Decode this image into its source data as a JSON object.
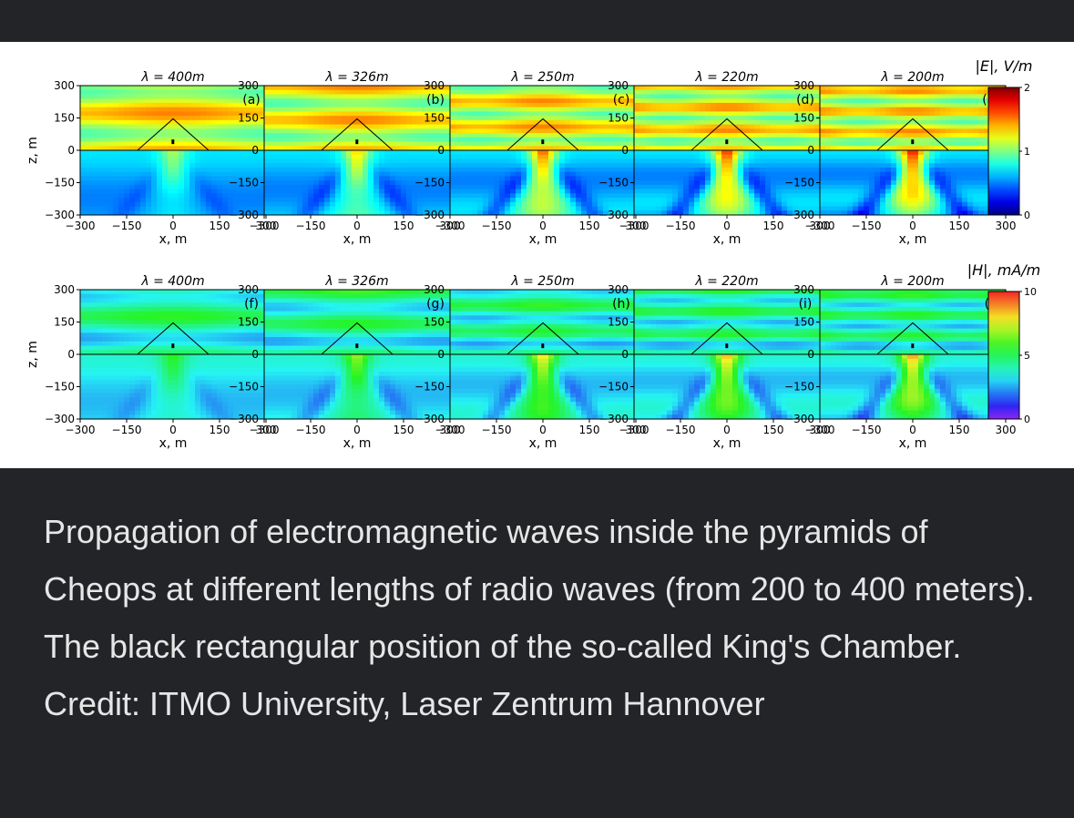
{
  "caption": "Propagation of electromagnetic waves inside the pyramids of Cheops at different lengths of radio waves (from 200 to 400 meters). The black rectangular position of the so-called King's Chamber. Credit: ITMO University, Laser Zentrum Hannover",
  "chart_data": {
    "type": "heatmap",
    "xlabel": "x, m",
    "ylabel": "z, m",
    "xlim": [
      -300,
      300
    ],
    "ylim": [
      -300,
      300
    ],
    "x_ticks": [
      "−300",
      "−150",
      "0",
      "150",
      "300"
    ],
    "y_ticks": [
      "300",
      "150",
      "0",
      "−150",
      "−300"
    ],
    "rows": [
      {
        "field": "E",
        "colorbar": {
          "label": "|E|, V/m",
          "min": 0,
          "max": 2,
          "ticks": [
            "2",
            "1",
            "0"
          ],
          "colormap": "jet"
        },
        "panels": [
          {
            "label": "(a)",
            "title": "λ = 400m",
            "wavelength_m": 400
          },
          {
            "label": "(b)",
            "title": "λ = 326m",
            "wavelength_m": 326
          },
          {
            "label": "(c)",
            "title": "λ = 250m",
            "wavelength_m": 250
          },
          {
            "label": "(d)",
            "title": "λ = 220m",
            "wavelength_m": 220
          },
          {
            "label": "(e)",
            "title": "λ = 200m",
            "wavelength_m": 200
          }
        ]
      },
      {
        "field": "H",
        "colorbar": {
          "label": "|H|, mA/m",
          "min": 0,
          "max": 10,
          "ticks": [
            "10",
            "5",
            "0"
          ],
          "colormap": "rainbow"
        },
        "panels": [
          {
            "label": "(f)",
            "title": "λ = 400m",
            "wavelength_m": 400
          },
          {
            "label": "(g)",
            "title": "λ = 326m",
            "wavelength_m": 326
          },
          {
            "label": "(h)",
            "title": "λ = 250m",
            "wavelength_m": 250
          },
          {
            "label": "(i)",
            "title": "λ = 220m",
            "wavelength_m": 220
          },
          {
            "label": "(j)",
            "title": "λ = 200m",
            "wavelength_m": 200
          }
        ]
      }
    ]
  }
}
